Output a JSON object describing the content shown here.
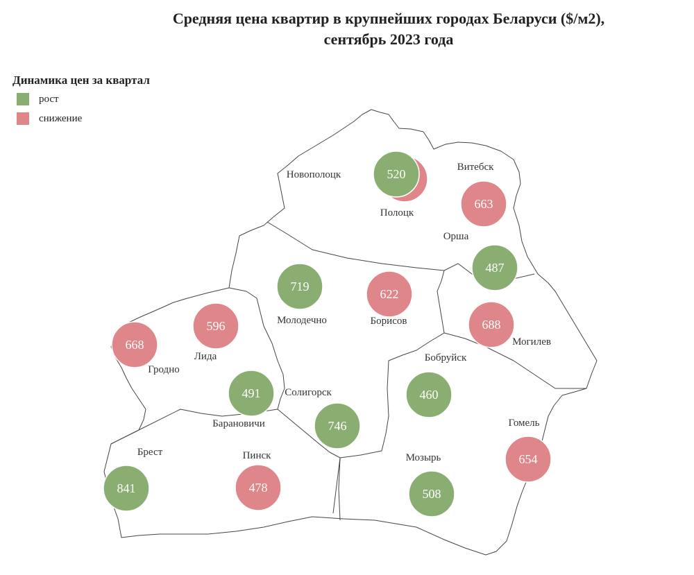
{
  "title_line1": "Средняя цена квартир в крупнейших городах Беларуси ($/м2),",
  "title_line2": "сентябрь 2023 года",
  "legend": {
    "title": "Динамика цен за квартал",
    "items": [
      {
        "label": "рост",
        "color": "#8aae72"
      },
      {
        "label": "снижение",
        "color": "#df868b"
      }
    ]
  },
  "colors": {
    "growth": "#8aae72",
    "decline": "#df868b",
    "border": "#444444"
  },
  "cities": [
    {
      "name": "Полоцк",
      "value": null,
      "trend": "decline"
    },
    {
      "name": "Новополоцк",
      "value": 520,
      "trend": "growth"
    },
    {
      "name": "Витебск",
      "value": 663,
      "trend": "decline"
    },
    {
      "name": "Орша",
      "value": 487,
      "trend": "growth"
    },
    {
      "name": "Молодечно",
      "value": 719,
      "trend": "growth"
    },
    {
      "name": "Борисов",
      "value": 622,
      "trend": "decline"
    },
    {
      "name": "Могилев",
      "value": 688,
      "trend": "decline"
    },
    {
      "name": "Лида",
      "value": 596,
      "trend": "decline"
    },
    {
      "name": "Гродно",
      "value": 668,
      "trend": "decline"
    },
    {
      "name": "Барановичи",
      "value": 491,
      "trend": "growth"
    },
    {
      "name": "Бобруйск",
      "value": 460,
      "trend": "growth"
    },
    {
      "name": "Солигорск",
      "value": 746,
      "trend": "growth"
    },
    {
      "name": "Гомель",
      "value": 654,
      "trend": "decline"
    },
    {
      "name": "Брест",
      "value": 841,
      "trend": "growth"
    },
    {
      "name": "Пинск",
      "value": 478,
      "trend": "decline"
    },
    {
      "name": "Мозырь",
      "value": 508,
      "trend": "growth"
    }
  ]
}
